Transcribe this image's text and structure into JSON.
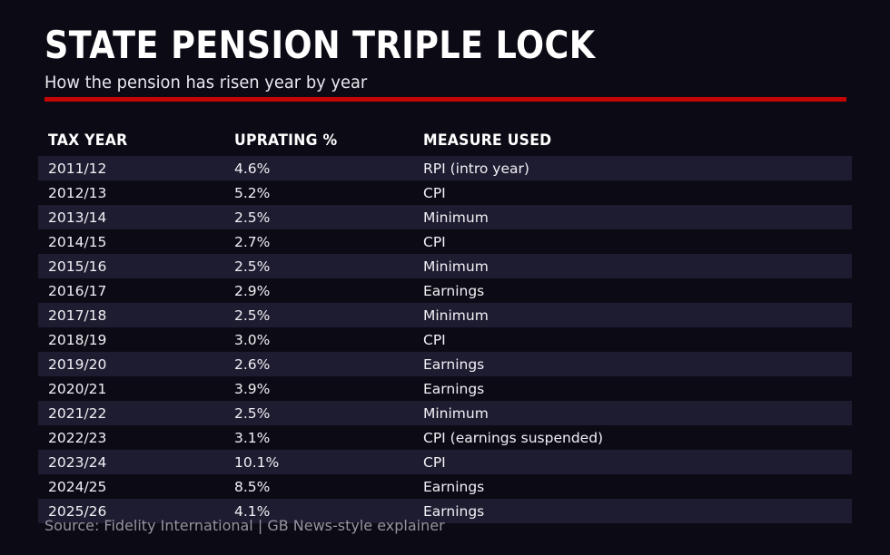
{
  "header": {
    "title": "STATE PENSION TRIPLE LOCK",
    "subtitle": "How the pension has risen year by year"
  },
  "colors": {
    "background": "#0c0b15",
    "stripe": "#1e1c30",
    "accent_red": "#c50404",
    "text_primary": "#ffffff",
    "text_body": "#f1f0f5",
    "text_muted": "#96949f"
  },
  "table": {
    "columns": [
      "TAX YEAR",
      "UPRATING %",
      "MEASURE USED"
    ],
    "rows": [
      {
        "tax_year": "2011/12",
        "uprating": "4.6%",
        "measure": "RPI (intro year)"
      },
      {
        "tax_year": "2012/13",
        "uprating": "5.2%",
        "measure": "CPI"
      },
      {
        "tax_year": "2013/14",
        "uprating": "2.5%",
        "measure": "Minimum"
      },
      {
        "tax_year": "2014/15",
        "uprating": "2.7%",
        "measure": "CPI"
      },
      {
        "tax_year": "2015/16",
        "uprating": "2.5%",
        "measure": "Minimum"
      },
      {
        "tax_year": "2016/17",
        "uprating": "2.9%",
        "measure": "Earnings"
      },
      {
        "tax_year": "2017/18",
        "uprating": "2.5%",
        "measure": "Minimum"
      },
      {
        "tax_year": "2018/19",
        "uprating": "3.0%",
        "measure": "CPI"
      },
      {
        "tax_year": "2019/20",
        "uprating": "2.6%",
        "measure": "Earnings"
      },
      {
        "tax_year": "2020/21",
        "uprating": "3.9%",
        "measure": "Earnings"
      },
      {
        "tax_year": "2021/22",
        "uprating": "2.5%",
        "measure": "Minimum"
      },
      {
        "tax_year": "2022/23",
        "uprating": "3.1%",
        "measure": "CPI (earnings suspended)"
      },
      {
        "tax_year": "2023/24",
        "uprating": "10.1%",
        "measure": "CPI"
      },
      {
        "tax_year": "2024/25",
        "uprating": "8.5%",
        "measure": "Earnings"
      },
      {
        "tax_year": "2025/26",
        "uprating": "4.1%",
        "measure": "Earnings"
      }
    ]
  },
  "footer": {
    "source": "Source: Fidelity International | GB News-style explainer"
  },
  "chart_data": {
    "type": "table",
    "title": "STATE PENSION TRIPLE LOCK",
    "subtitle": "How the pension has risen year by year",
    "columns": [
      "TAX YEAR",
      "UPRATING %",
      "MEASURE USED"
    ],
    "categories": [
      "2011/12",
      "2012/13",
      "2013/14",
      "2014/15",
      "2015/16",
      "2016/17",
      "2017/18",
      "2018/19",
      "2019/20",
      "2020/21",
      "2021/22",
      "2022/23",
      "2023/24",
      "2024/25",
      "2025/26"
    ],
    "series": [
      {
        "name": "Uprating %",
        "values": [
          4.6,
          5.2,
          2.5,
          2.7,
          2.5,
          2.9,
          2.5,
          3.0,
          2.6,
          3.9,
          2.5,
          3.1,
          10.1,
          8.5,
          4.1
        ]
      },
      {
        "name": "Measure used",
        "values": [
          "RPI (intro year)",
          "CPI",
          "Minimum",
          "CPI",
          "Minimum",
          "Earnings",
          "Minimum",
          "CPI",
          "Earnings",
          "Earnings",
          "Minimum",
          "CPI (earnings suspended)",
          "CPI",
          "Earnings",
          "Earnings"
        ]
      }
    ],
    "source": "Source: Fidelity International | GB News-style explainer",
    "layout": {
      "striped_rows": "odd",
      "grid": false,
      "legend": "none"
    }
  }
}
